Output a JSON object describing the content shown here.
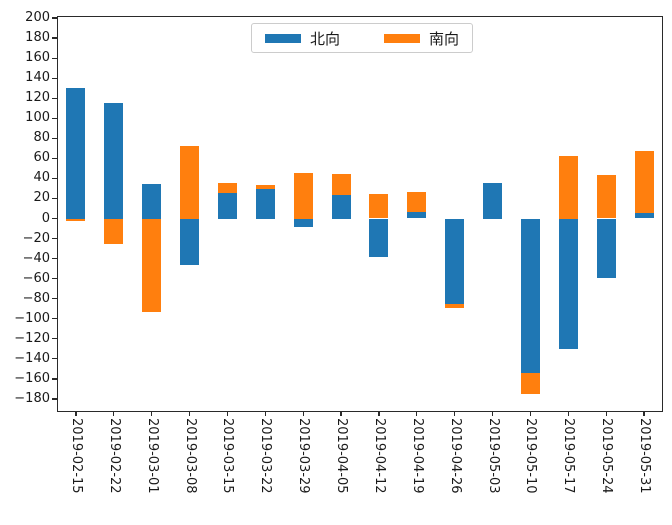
{
  "legend": {
    "items": [
      {
        "label": "北向",
        "color": "#1f77b4"
      },
      {
        "label": "南向",
        "color": "#ff7f0e"
      }
    ],
    "position": "upper center"
  },
  "chart_data": {
    "type": "bar",
    "stacked": true,
    "title": "",
    "xlabel": "",
    "ylabel": "",
    "grid": false,
    "legend_position": "upper center",
    "categories": [
      "2019-02-15",
      "2019-02-22",
      "2019-03-01",
      "2019-03-08",
      "2019-03-15",
      "2019-03-22",
      "2019-03-29",
      "2019-04-05",
      "2019-04-12",
      "2019-04-19",
      "2019-04-26",
      "2019-05-03",
      "2019-05-10",
      "2019-05-17",
      "2019-05-24",
      "2019-05-31"
    ],
    "series": [
      {
        "name": "北向",
        "color": "#1f77b4",
        "values": [
          130,
          115,
          34,
          -46,
          25,
          29,
          -8,
          23,
          -38,
          6,
          -85,
          35,
          -154,
          -130,
          -59,
          5
        ]
      },
      {
        "name": "南向",
        "color": "#ff7f0e",
        "values": [
          -2,
          -25,
          -93,
          72,
          10,
          4,
          45,
          21,
          24,
          20,
          -4,
          0,
          -21,
          62,
          43,
          62
        ]
      }
    ],
    "yticks": [
      200,
      180,
      160,
      140,
      120,
      100,
      80,
      60,
      40,
      20,
      0,
      -20,
      -40,
      -60,
      -80,
      -100,
      -120,
      -140,
      -160,
      -180
    ],
    "ylim": [
      -193,
      202
    ],
    "bar_width_fraction": 0.5,
    "tick_label_color": "#1a1a1a",
    "spine_color": "#2a2a2a",
    "background": "#ffffff"
  }
}
